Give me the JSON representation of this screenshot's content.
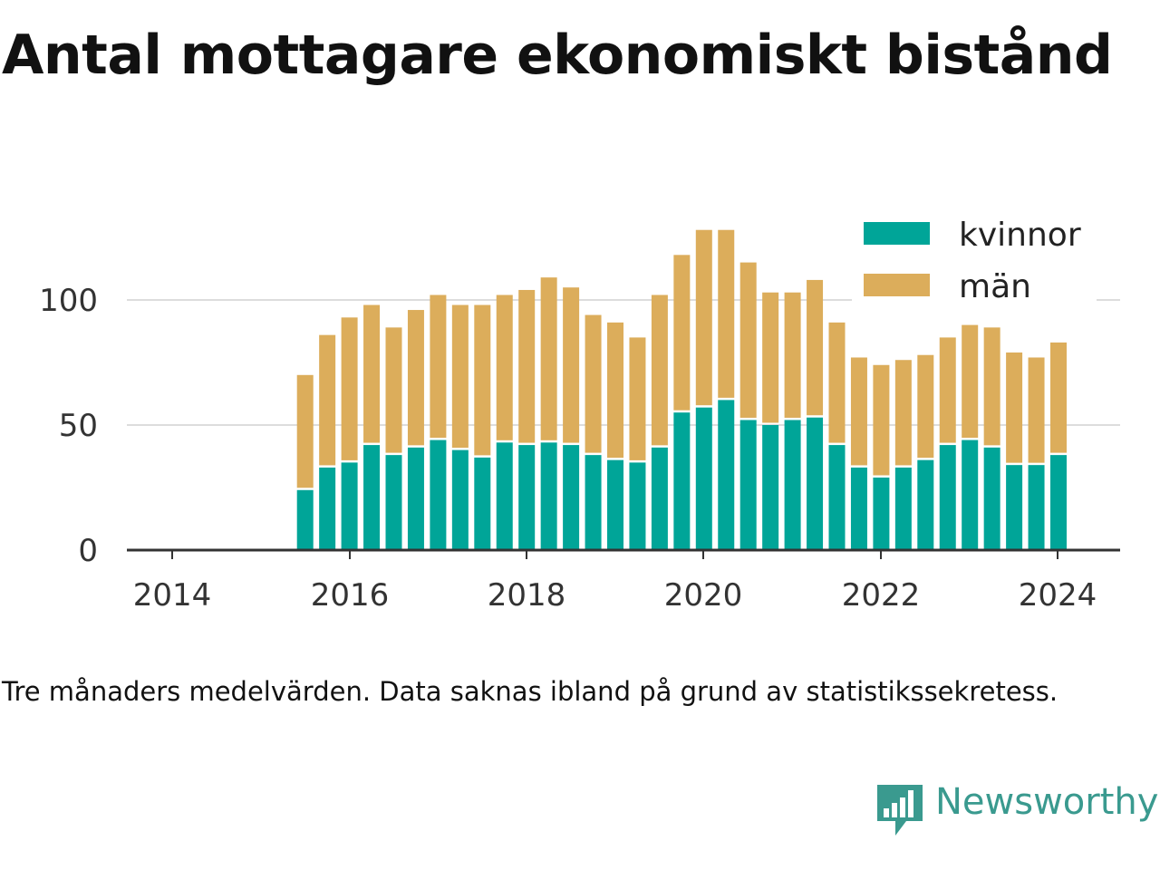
{
  "title": "Antal mottagare ekonomiskt bistånd",
  "note": "Tre månaders medelvärden. Data saknas ibland på grund av statistikssekretess.",
  "brand": {
    "name": "Newsworthy",
    "color": "#3a9a8f",
    "icon": "newsworthy-chat-bars-icon"
  },
  "colors": {
    "kvinnor": "#00a598",
    "man": "#dcad5b",
    "grid": "#dddddd",
    "axis": "#333333"
  },
  "chart_data": {
    "type": "bar",
    "stacked": true,
    "x_ticks": [
      "2014",
      "2016",
      "2018",
      "2020",
      "2022",
      "2024"
    ],
    "y_ticks": [
      0,
      50,
      100
    ],
    "ylim": [
      0,
      130
    ],
    "xlim": [
      "2013-07-01",
      "2024-10-01"
    ],
    "legend_position": "top-right",
    "grid": "horizontal",
    "x": [
      "2015-07",
      "2015-10",
      "2016-01",
      "2016-04",
      "2016-07",
      "2016-10",
      "2017-01",
      "2017-04",
      "2017-07",
      "2017-10",
      "2018-01",
      "2018-04",
      "2018-07",
      "2018-10",
      "2019-01",
      "2019-04",
      "2019-07",
      "2019-10",
      "2020-01",
      "2020-04",
      "2020-07",
      "2020-10",
      "2021-01",
      "2021-04",
      "2021-07",
      "2021-10",
      "2022-01",
      "2022-04",
      "2022-07",
      "2022-10",
      "2023-01",
      "2023-04",
      "2023-07",
      "2023-10",
      "2024-01"
    ],
    "series": [
      {
        "name": "kvinnor",
        "values": [
          24,
          33,
          35,
          42,
          38,
          41,
          44,
          40,
          37,
          43,
          42,
          43,
          42,
          38,
          36,
          35,
          41,
          55,
          57,
          60,
          52,
          50,
          52,
          53,
          42,
          33,
          29,
          33,
          36,
          42,
          44,
          41,
          34,
          34,
          38
        ]
      },
      {
        "name": "män",
        "values": [
          46,
          53,
          58,
          56,
          51,
          55,
          58,
          58,
          61,
          59,
          62,
          66,
          63,
          56,
          55,
          50,
          61,
          63,
          71,
          68,
          63,
          53,
          51,
          55,
          49,
          44,
          45,
          43,
          42,
          43,
          46,
          48,
          45,
          43,
          45
        ]
      }
    ]
  }
}
